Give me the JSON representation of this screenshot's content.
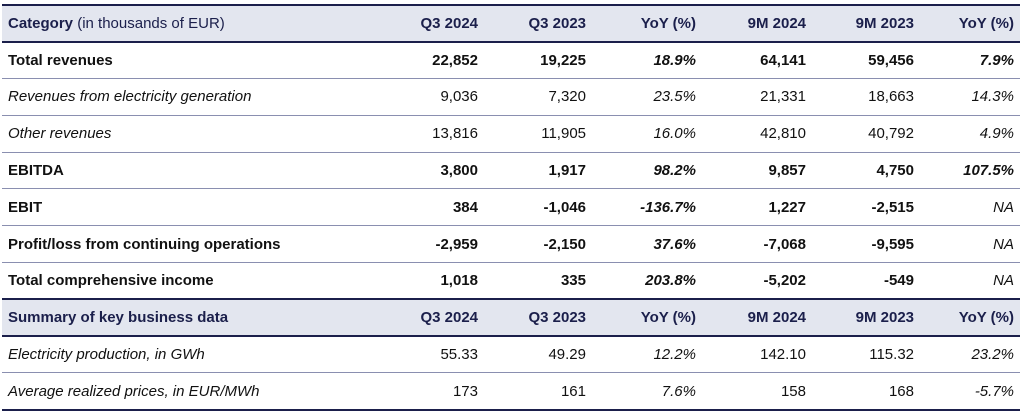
{
  "table1": {
    "header": {
      "category": "Category",
      "category_note": "(in thousands of EUR)",
      "cols": [
        "Q3 2024",
        "Q3 2023",
        "YoY (%)",
        "9M 2024",
        "9M 2023",
        "YoY (%)"
      ]
    },
    "rows": [
      {
        "label": "Total revenues",
        "q3_2024": "22,852",
        "q3_2023": "19,225",
        "yoy_q": "18.9%",
        "m9_2024": "64,141",
        "m9_2023": "59,456",
        "yoy_m": "7.9%"
      },
      {
        "label": "Revenues from electricity generation",
        "q3_2024": "9,036",
        "q3_2023": "7,320",
        "yoy_q": "23.5%",
        "m9_2024": "21,331",
        "m9_2023": "18,663",
        "yoy_m": "14.3%"
      },
      {
        "label": "Other revenues",
        "q3_2024": "13,816",
        "q3_2023": "11,905",
        "yoy_q": "16.0%",
        "m9_2024": "42,810",
        "m9_2023": "40,792",
        "yoy_m": "4.9%"
      },
      {
        "label": "EBITDA",
        "q3_2024": "3,800",
        "q3_2023": "1,917",
        "yoy_q": "98.2%",
        "m9_2024": "9,857",
        "m9_2023": "4,750",
        "yoy_m": "107.5%"
      },
      {
        "label": "EBIT",
        "q3_2024": "384",
        "q3_2023": "-1,046",
        "yoy_q": "-136.7%",
        "m9_2024": "1,227",
        "m9_2023": "-2,515",
        "yoy_m": "NA"
      },
      {
        "label": "Profit/loss from continuing operations",
        "q3_2024": "-2,959",
        "q3_2023": "-2,150",
        "yoy_q": "37.6%",
        "m9_2024": "-7,068",
        "m9_2023": "-9,595",
        "yoy_m": "NA"
      },
      {
        "label": "Total comprehensive income",
        "q3_2024": "1,018",
        "q3_2023": "335",
        "yoy_q": "203.8%",
        "m9_2024": "-5,202",
        "m9_2023": "-549",
        "yoy_m": "NA"
      }
    ]
  },
  "table2": {
    "header": {
      "category": "Summary of key business data",
      "cols": [
        "Q3 2024",
        "Q3 2023",
        "YoY (%)",
        "9M 2024",
        "9M 2023",
        "YoY (%)"
      ]
    },
    "rows": [
      {
        "label": "Electricity production, in GWh",
        "q3_2024": "55.33",
        "q3_2023": "49.29",
        "yoy_q": "12.2%",
        "m9_2024": "142.10",
        "m9_2023": "115.32",
        "yoy_m": "23.2%"
      },
      {
        "label": "Average realized prices, in EUR/MWh",
        "q3_2024": "173",
        "q3_2023": "161",
        "yoy_q": "7.6%",
        "m9_2024": "158",
        "m9_2023": "168",
        "yoy_m": "-5.7%"
      }
    ]
  },
  "colors": {
    "header_bg": "#e3e6ef",
    "header_text": "#1b1f4b",
    "rule": "#1b1f4b"
  }
}
